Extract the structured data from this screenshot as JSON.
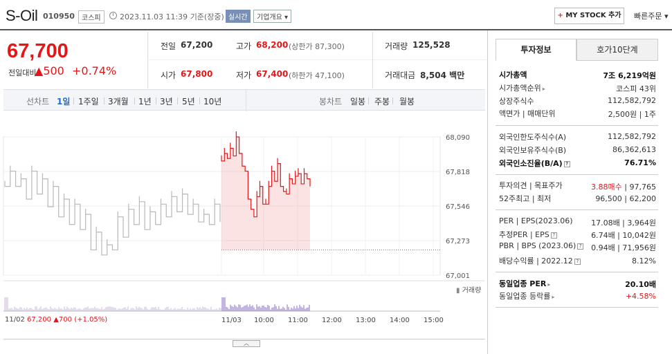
{
  "header": {
    "company": "S-Oil",
    "code": "010950",
    "market": "코스피",
    "datetime": "2023.11.03 11:39",
    "basis": "기준(장중)",
    "realtime": "실시간",
    "corp_info": "기업개요",
    "my_stock": "MY STOCK 추가",
    "quick_order": "빠른주문"
  },
  "price": {
    "current": "67,700",
    "diff_label": "전일대비",
    "diff_value": "500",
    "diff_pct": "+0.74%"
  },
  "quote": {
    "prev_label": "전일",
    "prev_value": "67,200",
    "high_label": "고가",
    "high_value": "68,200",
    "upper_limit": "(상한가 87,300)",
    "volume_label": "거래량",
    "volume_value": "125,528",
    "open_label": "시가",
    "open_value": "67,800",
    "low_label": "저가",
    "low_value": "67,400",
    "lower_limit": "(하한가 47,100)",
    "amount_label": "거래대금",
    "amount_value": "8,504",
    "amount_unit": "백만"
  },
  "tabs": {
    "line_label": "선차트",
    "periods": [
      "1일",
      "1주일",
      "3개월",
      "1년",
      "3년",
      "5년",
      "10년"
    ],
    "candle_label": "봉차트",
    "candles": [
      "일봉",
      "주봉",
      "월봉"
    ]
  },
  "chart_data": {
    "type": "line",
    "y_ticks": [
      "68,090",
      "67,818",
      "67,546",
      "67,273",
      "67,001"
    ],
    "ylim": [
      67001,
      68090
    ],
    "x_ticks": [
      "11/03",
      "10:00",
      "11:00",
      "12:00",
      "13:00",
      "14:00",
      "15:00"
    ],
    "volume_label": "거래량",
    "prev_close": 67200,
    "series": [
      {
        "values": [
          67700,
          67820,
          67700,
          67760,
          67600,
          67820,
          67640,
          67760,
          67540,
          67700,
          67460,
          67600,
          67400,
          67560,
          67360,
          67480,
          67200,
          67340,
          67160,
          67240,
          67200,
          67460,
          67300,
          67520,
          67400,
          67580,
          67360,
          67500,
          67400,
          67560,
          67460,
          67620,
          67500,
          67640,
          67480,
          67560,
          67420,
          67480,
          67400,
          67560,
          67420
        ]
      },
      {
        "values": [
          67900,
          67960,
          67920,
          68000,
          67940,
          68090,
          67960,
          67860,
          67820,
          67600,
          67520,
          67460,
          67620,
          67700,
          67560,
          67560,
          67700,
          67820,
          67740,
          67880,
          67700,
          67660,
          67640,
          67760,
          67720,
          67780,
          67800,
          67720,
          67800,
          67760,
          67700
        ]
      }
    ]
  },
  "footer": {
    "prev_date": "11/02",
    "prev_close": "67,200",
    "prev_diff": "700",
    "prev_pct": "(+1.05%)"
  },
  "panel": {
    "tab_invest": "투자정보",
    "tab_hoga": "호가10단계",
    "mktcap_label": "시가총액",
    "mktcap_value": "7조 6,219억원",
    "mktcap_rank_label": "시가총액순위",
    "mktcap_rank_value": "코스피 43위",
    "shares_label": "상장주식수",
    "shares_value": "112,582,792",
    "par_label": "액면가 | 매매단위",
    "par_value": "2,500원 | 1주",
    "foreign_limit_label": "외국인한도주식수(A)",
    "foreign_limit_value": "112,582,792",
    "foreign_hold_label": "외국인보유주식수(B)",
    "foreign_hold_value": "86,362,613",
    "foreign_rate_label": "외국인소진율(B/A)",
    "foreign_rate_value": "76.71%",
    "opinion_label": "투자의견 | 목표주가",
    "opinion_value": "3.88매수",
    "target_value": "97,765",
    "w52_label": "52주최고 | 최저",
    "w52_value": "96,500 | 62,200",
    "per_label": "PER | EPS(2023.06)",
    "per_value": "17.08배 | 3,964원",
    "eper_label": "추정PER | EPS",
    "eper_value": "6.74배 | 10,042원",
    "pbr_label": "PBR | BPS (2023.06)",
    "pbr_value": "0.94배 | 71,956원",
    "div_label": "배당수익률 | 2022.12",
    "div_value": "8.12%",
    "ind_per_label": "동일업종 PER",
    "ind_per_value": "20.10배",
    "ind_rate_label": "동일업종 등락률",
    "ind_rate_value": "+4.58%"
  },
  "colors": {
    "up": "#e4161a",
    "down": "#1a6ed8",
    "accent": "#7890b8"
  }
}
